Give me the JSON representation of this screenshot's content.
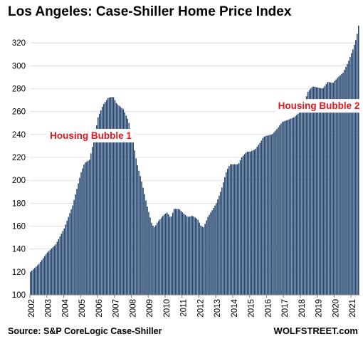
{
  "chart_data": {
    "type": "bar",
    "title": "Los Angeles: Case-Shiller Home Price Index",
    "source": "Source: S&P CoreLogic Case-Shiller",
    "brand": "WOLFSTREET.com",
    "bar_color": "#23446f",
    "annotation_color": "#e8141c",
    "ylim": [
      100,
      340
    ],
    "y_ticks": [
      100,
      120,
      140,
      160,
      180,
      200,
      220,
      240,
      260,
      280,
      300,
      320
    ],
    "x_tick_labels": [
      "2002",
      "2003",
      "2004",
      "2005",
      "2006",
      "2007",
      "2008",
      "2009",
      "2010",
      "2011",
      "2012",
      "2013",
      "2014",
      "2015",
      "2016",
      "2017",
      "2018",
      "2019",
      "2020",
      "2021"
    ],
    "start_year": 2002,
    "months_per_bar": 1,
    "annotations": [
      {
        "text": "Housing Bubble 1",
        "x": 2005.6,
        "y": 239
      },
      {
        "text": "Housing Bubble 2",
        "x": 2019.1,
        "y": 265
      }
    ],
    "anchors": [
      [
        2002.0,
        120
      ],
      [
        2002.5,
        127
      ],
      [
        2003.0,
        137
      ],
      [
        2003.5,
        144
      ],
      [
        2004.0,
        158
      ],
      [
        2004.5,
        178
      ],
      [
        2005.0,
        207
      ],
      [
        2005.2,
        215
      ],
      [
        2005.5,
        218
      ],
      [
        2005.8,
        238
      ],
      [
        2006.0,
        255
      ],
      [
        2006.3,
        266
      ],
      [
        2006.6,
        272
      ],
      [
        2006.9,
        273
      ],
      [
        2007.1,
        267
      ],
      [
        2007.5,
        262
      ],
      [
        2007.8,
        252
      ],
      [
        2008.0,
        240
      ],
      [
        2008.3,
        215
      ],
      [
        2008.6,
        198
      ],
      [
        2008.9,
        178
      ],
      [
        2009.2,
        161
      ],
      [
        2009.35,
        159
      ],
      [
        2009.5,
        163
      ],
      [
        2009.9,
        170
      ],
      [
        2010.1,
        172
      ],
      [
        2010.3,
        167
      ],
      [
        2010.5,
        175
      ],
      [
        2010.8,
        175
      ],
      [
        2011.0,
        172
      ],
      [
        2011.3,
        168
      ],
      [
        2011.6,
        169
      ],
      [
        2011.9,
        166
      ],
      [
        2012.1,
        160
      ],
      [
        2012.25,
        159
      ],
      [
        2012.5,
        168
      ],
      [
        2012.8,
        175
      ],
      [
        2013.0,
        180
      ],
      [
        2013.3,
        192
      ],
      [
        2013.6,
        208
      ],
      [
        2013.8,
        214
      ],
      [
        2014.3,
        214
      ],
      [
        2014.5,
        220
      ],
      [
        2014.8,
        225
      ],
      [
        2015.0,
        225
      ],
      [
        2015.3,
        227
      ],
      [
        2015.6,
        233
      ],
      [
        2015.8,
        238
      ],
      [
        2016.0,
        239
      ],
      [
        2016.3,
        240
      ],
      [
        2016.6,
        245
      ],
      [
        2016.9,
        251
      ],
      [
        2017.1,
        252
      ],
      [
        2017.6,
        255
      ],
      [
        2017.9,
        259
      ],
      [
        2018.2,
        266
      ],
      [
        2018.4,
        277
      ],
      [
        2018.7,
        282
      ],
      [
        2019.0,
        281
      ],
      [
        2019.3,
        280
      ],
      [
        2019.6,
        286
      ],
      [
        2019.9,
        285
      ],
      [
        2020.2,
        290
      ],
      [
        2020.5,
        294
      ],
      [
        2020.8,
        303
      ],
      [
        2021.1,
        315
      ],
      [
        2021.3,
        325
      ],
      [
        2021.45,
        338
      ]
    ]
  }
}
